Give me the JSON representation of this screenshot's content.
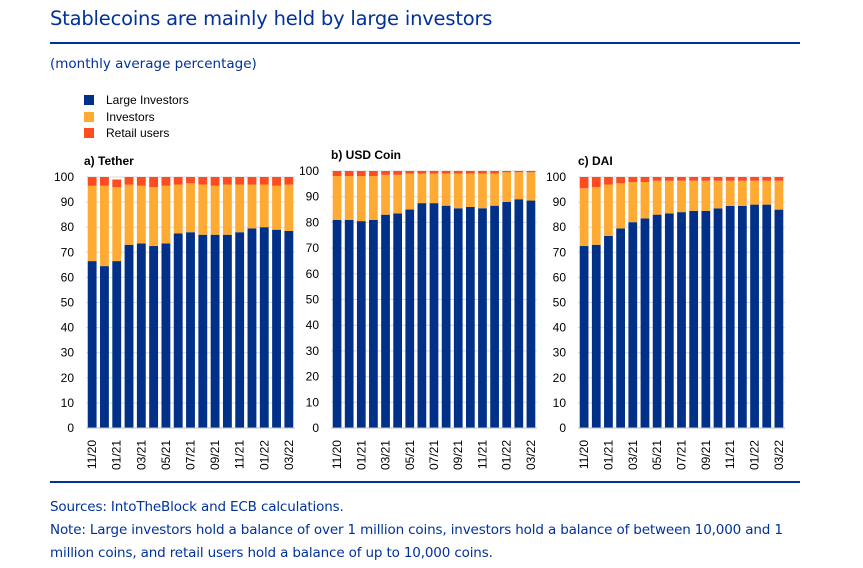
{
  "header": {
    "title": "Stablecoins are mainly held by large investors",
    "subtitle": "(monthly average percentage)"
  },
  "colors": {
    "brand": "#003299",
    "large_investors": "#003087",
    "investors": "#FFAA33",
    "retail_users": "#FF4B20",
    "grid": "#d9d9d9"
  },
  "legend": [
    {
      "label": "Large Investors",
      "color": "#003087"
    },
    {
      "label": "Investors",
      "color": "#FFAA33"
    },
    {
      "label": "Retail users",
      "color": "#FF4B20"
    }
  ],
  "footer": {
    "sources": "Sources: IntoTheBlock and ECB calculations.",
    "note": "Note: Large investors hold a balance of over 1 million coins, investors hold a balance of between 10,000 and 1 million coins, and retail users hold a balance of up to 10,000 coins."
  },
  "chart_data": [
    {
      "type": "bar",
      "stacked": true,
      "title": "a) Tether",
      "categories": [
        "11/20",
        "12/20",
        "01/21",
        "02/21",
        "03/21",
        "04/21",
        "05/21",
        "06/21",
        "07/21",
        "08/21",
        "09/21",
        "10/21",
        "11/21",
        "12/21",
        "01/22",
        "02/22",
        "03/22"
      ],
      "tick_labels": [
        "11/20",
        "01/21",
        "03/21",
        "05/21",
        "07/21",
        "09/21",
        "11/21",
        "01/22",
        "03/22"
      ],
      "ylim": [
        0,
        100
      ],
      "yticks": [
        0,
        10,
        20,
        30,
        40,
        50,
        60,
        70,
        80,
        90,
        100
      ],
      "grid": true,
      "legend_position": "top-left",
      "series": [
        {
          "name": "Large Investors",
          "values": [
            66.5,
            64.5,
            66.5,
            73,
            73.5,
            72.5,
            73.5,
            77.5,
            78,
            77,
            77,
            77,
            78,
            79.5,
            80,
            79,
            78.5
          ]
        },
        {
          "name": "Investors",
          "values": [
            30,
            32,
            29.5,
            24,
            23,
            23.5,
            23,
            19.5,
            19.5,
            20,
            19.5,
            20,
            19,
            17.5,
            17,
            17.5,
            18.5
          ]
        },
        {
          "name": "Retail users",
          "values": [
            3.5,
            3.5,
            3,
            3,
            3.5,
            4,
            3.5,
            3,
            2.5,
            3,
            3.5,
            3,
            3,
            3,
            3,
            3.5,
            3
          ]
        }
      ]
    },
    {
      "type": "bar",
      "stacked": true,
      "title": "b) USD Coin",
      "categories": [
        "11/20",
        "12/20",
        "01/21",
        "02/21",
        "03/21",
        "04/21",
        "05/21",
        "06/21",
        "07/21",
        "08/21",
        "09/21",
        "10/21",
        "11/21",
        "12/21",
        "01/22",
        "02/22",
        "03/22"
      ],
      "tick_labels": [
        "11/20",
        "01/21",
        "03/21",
        "05/21",
        "07/21",
        "09/21",
        "11/21",
        "01/22",
        "03/22"
      ],
      "ylim": [
        0,
        100
      ],
      "yticks": [
        0,
        10,
        20,
        30,
        40,
        50,
        60,
        70,
        80,
        90,
        100
      ],
      "grid": true,
      "series": [
        {
          "name": "Large Investors",
          "values": [
            81,
            81,
            80.5,
            81,
            83,
            83.5,
            85,
            87.5,
            87.5,
            86.5,
            85.5,
            86,
            85.5,
            86.5,
            88,
            89,
            88.5
          ]
        },
        {
          "name": "Investors",
          "values": [
            17,
            17,
            17.5,
            17,
            15.5,
            15,
            14,
            11.5,
            11.5,
            12.5,
            13.5,
            13,
            13.5,
            12.5,
            11.5,
            10.5,
            11
          ]
        },
        {
          "name": "Retail users",
          "values": [
            2,
            2,
            2,
            2,
            1.5,
            1.5,
            1,
            1,
            1,
            1,
            1,
            1,
            1,
            1,
            0.5,
            0.5,
            0.5
          ]
        }
      ]
    },
    {
      "type": "bar",
      "stacked": true,
      "title": "c) DAI",
      "categories": [
        "11/20",
        "12/20",
        "01/21",
        "02/21",
        "03/21",
        "04/21",
        "05/21",
        "06/21",
        "07/21",
        "08/21",
        "09/21",
        "10/21",
        "11/21",
        "12/21",
        "01/22",
        "02/22",
        "03/22"
      ],
      "tick_labels": [
        "11/20",
        "01/21",
        "03/21",
        "05/21",
        "07/21",
        "09/21",
        "11/21",
        "01/22",
        "03/22"
      ],
      "ylim": [
        0,
        100
      ],
      "yticks": [
        0,
        10,
        20,
        30,
        40,
        50,
        60,
        70,
        80,
        90,
        100
      ],
      "grid": true,
      "series": [
        {
          "name": "Large Investors",
          "values": [
            72.5,
            73,
            76.5,
            79.5,
            82,
            83.5,
            85,
            85.5,
            86,
            86.5,
            86.5,
            87.5,
            88.5,
            88.5,
            89,
            89,
            87
          ]
        },
        {
          "name": "Investors",
          "values": [
            23,
            23,
            20.5,
            18,
            16,
            14.5,
            13.5,
            13,
            12.5,
            12,
            12,
            11,
            10,
            10,
            9.5,
            9.5,
            11.5
          ]
        },
        {
          "name": "Retail users",
          "values": [
            4.5,
            4,
            3,
            2.5,
            2,
            2,
            1.5,
            1.5,
            1.5,
            1.5,
            1.5,
            1.5,
            1.5,
            1.5,
            1.5,
            1.5,
            1.5
          ]
        }
      ]
    }
  ]
}
